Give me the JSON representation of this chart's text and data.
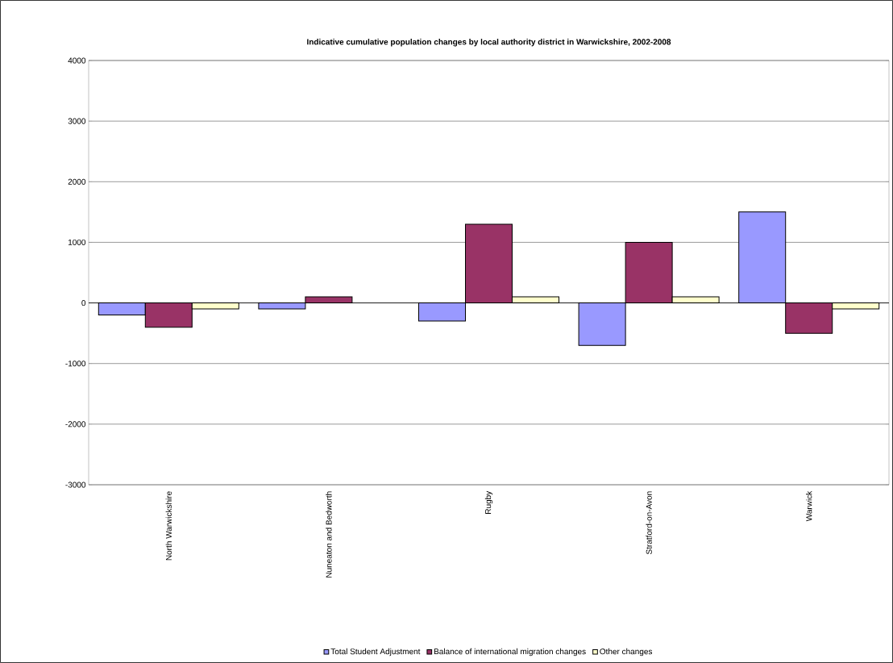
{
  "chart_data": {
    "type": "bar",
    "title": "Indicative cumulative population changes by local authority district in Warwickshire, 2002-2008",
    "categories": [
      "North Warwickshire",
      "Nuneaton and Bedworth",
      "Rugby",
      "Stratford-on-Avon",
      "Warwick"
    ],
    "series": [
      {
        "name": "Total Student Adjustment",
        "color": "#9999ff",
        "values": [
          -200,
          -100,
          -300,
          -700,
          1500
        ]
      },
      {
        "name": "Balance of international migration changes",
        "color": "#993366",
        "values": [
          -400,
          100,
          1300,
          1000,
          -500
        ]
      },
      {
        "name": "Other changes",
        "color": "#ffffcc",
        "values": [
          -100,
          null,
          100,
          100,
          -100
        ]
      }
    ],
    "ylim": [
      -3000,
      4000
    ],
    "yticks": [
      -3000,
      -2000,
      -1000,
      0,
      1000,
      2000,
      3000,
      4000
    ],
    "grid": "y",
    "legend": "bottom"
  }
}
